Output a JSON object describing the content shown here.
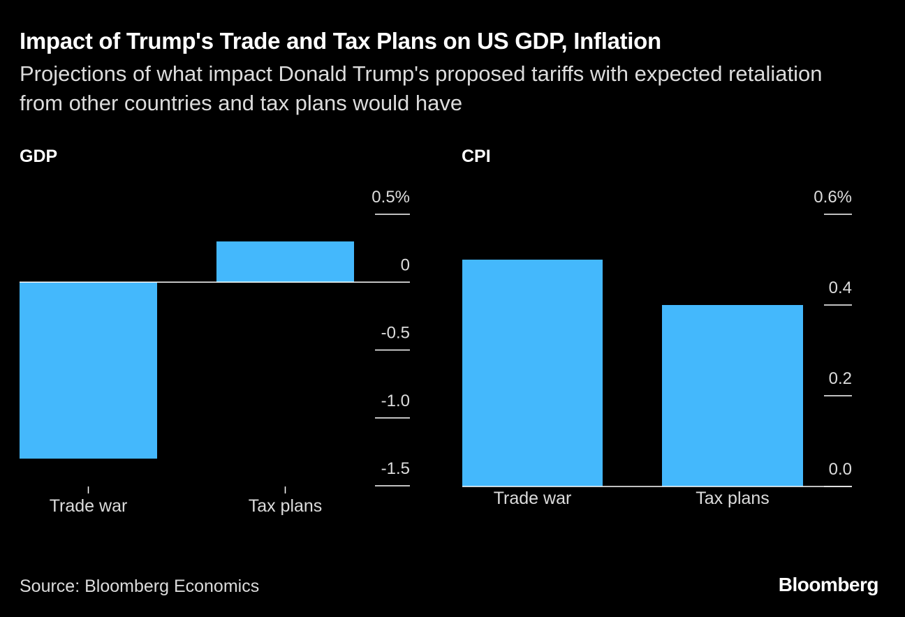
{
  "header": {
    "title": "Impact of Trump's Trade and Tax Plans on US GDP, Inflation",
    "subtitle": "Projections of what impact Donald Trump's proposed tariffs with expected retaliation from other countries and tax plans would have"
  },
  "colors": {
    "background": "#000000",
    "bar": "#44b8fc",
    "text": "#ffffff",
    "muted_text": "#dcdcdc",
    "axis": "#ffffff"
  },
  "chart_data": [
    {
      "id": "gdp",
      "type": "bar",
      "title": "GDP",
      "categories": [
        "Trade war",
        "Tax plans"
      ],
      "values": [
        -1.3,
        0.3
      ],
      "ylim": [
        -1.5,
        0.5
      ],
      "ticks": [
        0.5,
        0,
        -0.5,
        -1.0,
        -1.5
      ],
      "tick_labels": [
        "0.5%",
        "0",
        "-0.5",
        "-1.0",
        "-1.5"
      ],
      "axis_side": "right",
      "grid": false
    },
    {
      "id": "cpi",
      "type": "bar",
      "title": "CPI",
      "categories": [
        "Trade war",
        "Tax plans"
      ],
      "values": [
        0.5,
        0.4
      ],
      "ylim": [
        0,
        0.6
      ],
      "ticks": [
        0.6,
        0.4,
        0.2,
        0.0
      ],
      "tick_labels": [
        "0.6%",
        "0.4",
        "0.2",
        "0.0"
      ],
      "axis_side": "right",
      "grid": false
    }
  ],
  "footer": {
    "source": "Source: Bloomberg Economics",
    "brand": "Bloomberg"
  }
}
